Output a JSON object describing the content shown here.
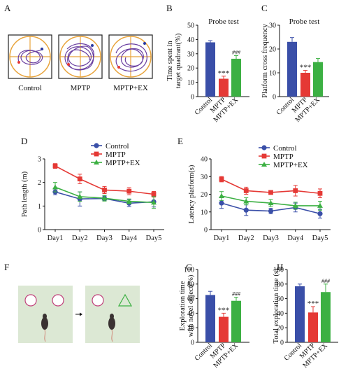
{
  "panels": {
    "A": {
      "letter": "A",
      "labels": [
        "Control",
        "MPTP",
        "MPTP+EX"
      ]
    },
    "F": {
      "letter": "F"
    }
  },
  "colors": {
    "control": "#3a4fa8",
    "mptp": "#e53935",
    "mptp_ex": "#3cb043",
    "gridline": "#e8a33a",
    "track": "#6a3fa0",
    "panel_bg": "#dce8d4"
  },
  "chart_data": [
    {
      "id": "B",
      "letter": "B",
      "type": "bar",
      "title": "Probe test",
      "ylabel": "Time spent in target quadrant(%)",
      "categories": [
        "Control",
        "MPTP",
        "MPTP+EX"
      ],
      "values": [
        38,
        12.5,
        26.5
      ],
      "errors": [
        1.2,
        1.8,
        2.2
      ],
      "annotations": [
        "",
        "***",
        "###"
      ],
      "ylim": [
        0,
        50
      ],
      "yticks": [
        "0",
        "10",
        "20",
        "30",
        "40",
        "50"
      ]
    },
    {
      "id": "C",
      "letter": "C",
      "type": "bar",
      "title": "Probe test",
      "ylabel": "Platform cross frequency",
      "categories": [
        "Control",
        "MPTP",
        "MPTP+EX"
      ],
      "values": [
        23,
        10,
        14.5
      ],
      "errors": [
        1.8,
        1,
        1.5
      ],
      "annotations": [
        "",
        "***",
        ""
      ],
      "ylim": [
        0,
        30
      ],
      "yticks": [
        "0",
        "10",
        "20",
        "30"
      ]
    },
    {
      "id": "D",
      "letter": "D",
      "type": "line",
      "ylabel": "Path length (m)",
      "categories": [
        "Day1",
        "Day2",
        "Day3",
        "Day4",
        "Day5"
      ],
      "series": [
        {
          "name": "Control",
          "values": [
            1.6,
            1.3,
            1.32,
            1.12,
            1.18
          ],
          "errors": [
            0.12,
            0.3,
            0.1,
            0.15,
            0.22
          ]
        },
        {
          "name": "MPTP",
          "values": [
            2.7,
            2.15,
            1.68,
            1.63,
            1.5
          ],
          "errors": [
            0.1,
            0.2,
            0.15,
            0.15,
            0.12
          ]
        },
        {
          "name": "MPTP+EX",
          "values": [
            1.8,
            1.4,
            1.33,
            1.2,
            1.15
          ],
          "errors": [
            0.2,
            0.2,
            0.12,
            0.1,
            0.25
          ]
        }
      ],
      "ylim": [
        0,
        3
      ],
      "yticks": [
        "0",
        "1",
        "2",
        "3"
      ]
    },
    {
      "id": "E",
      "letter": "E",
      "type": "line",
      "ylabel": "Latency platform(s)",
      "categories": [
        "Day1",
        "Day2",
        "Day3",
        "Day4",
        "Day5"
      ],
      "series": [
        {
          "name": "Control",
          "values": [
            15,
            11,
            10.5,
            12.5,
            9
          ],
          "errors": [
            3,
            3,
            1.5,
            2.5,
            2.5
          ]
        },
        {
          "name": "MPTP",
          "values": [
            28.5,
            22,
            21,
            22,
            20.5
          ],
          "errors": [
            1.5,
            2,
            1,
            3,
            2.5
          ]
        },
        {
          "name": "MPTP+EX",
          "values": [
            19,
            16,
            15,
            13.5,
            13.5
          ],
          "errors": [
            2.5,
            2,
            2,
            2,
            2.5
          ]
        }
      ],
      "ylim": [
        0,
        40
      ],
      "yticks": [
        "0",
        "10",
        "20",
        "30",
        "40"
      ]
    },
    {
      "id": "G",
      "letter": "G",
      "type": "bar",
      "ylabel": "Exploration time with novel object(%)",
      "categories": [
        "Control",
        "MPTP",
        "MPTP+EX"
      ],
      "values": [
        65,
        35,
        57
      ],
      "errors": [
        5,
        5,
        5
      ],
      "annotations": [
        "",
        "***",
        "###"
      ],
      "ylim": [
        0,
        100
      ],
      "yticks": [
        "0",
        "20",
        "40",
        "60",
        "80",
        "100"
      ]
    },
    {
      "id": "H",
      "letter": "H",
      "type": "bar",
      "ylabel": "Total exploration time (s)",
      "categories": [
        "Control",
        "MPTP",
        "MPTP+EX"
      ],
      "values": [
        77,
        41,
        69
      ],
      "errors": [
        3,
        8,
        11
      ],
      "annotations": [
        "",
        "***",
        "###"
      ],
      "ylim": [
        0,
        100
      ],
      "yticks": [
        "0",
        "20",
        "40",
        "60",
        "80",
        "100"
      ]
    }
  ]
}
